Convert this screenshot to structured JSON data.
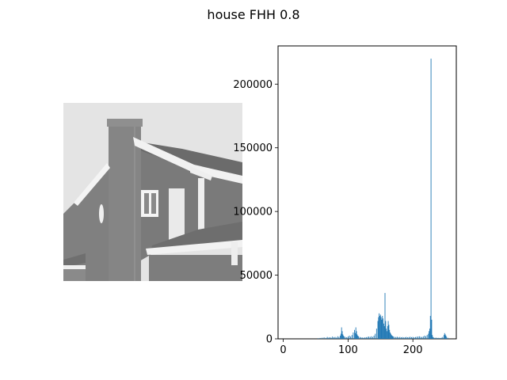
{
  "figure": {
    "title": "house FHH 0.8"
  },
  "image_panel": {
    "description_colors": {
      "sky": "#e4e4e4",
      "wall": "#7d7d7d",
      "trim": "#f2f2f2",
      "roof": "#6a6a6a"
    }
  },
  "chart_data": {
    "type": "bar",
    "title": "",
    "xlabel": "",
    "ylabel": "",
    "xlim": [
      -8,
      267
    ],
    "ylim": [
      0,
      230000
    ],
    "xticks": [
      0,
      100,
      200
    ],
    "yticks": [
      0,
      50000,
      100000,
      150000,
      200000
    ],
    "bar_color": "#1f77b4",
    "x": [
      54,
      57,
      60,
      63,
      66,
      68,
      70,
      72,
      74,
      76,
      78,
      80,
      82,
      84,
      86,
      88,
      89,
      90,
      91,
      92,
      93,
      94,
      96,
      98,
      100,
      102,
      104,
      106,
      108,
      110,
      111,
      112,
      113,
      114,
      115,
      116,
      118,
      120,
      122,
      124,
      126,
      128,
      130,
      132,
      134,
      136,
      138,
      140,
      142,
      144,
      146,
      147,
      148,
      149,
      150,
      151,
      152,
      153,
      154,
      155,
      156,
      157,
      158,
      159,
      160,
      161,
      162,
      163,
      164,
      165,
      166,
      167,
      168,
      169,
      170,
      172,
      174,
      176,
      178,
      180,
      182,
      184,
      186,
      188,
      190,
      192,
      194,
      196,
      198,
      200,
      202,
      204,
      206,
      208,
      210,
      212,
      214,
      216,
      218,
      220,
      222,
      224,
      225,
      226,
      227,
      228,
      229,
      230,
      231,
      232,
      234,
      236,
      238,
      240,
      242,
      244,
      246,
      248,
      249,
      250,
      251,
      252,
      254
    ],
    "y": [
      500,
      700,
      900,
      1200,
      800,
      1500,
      1000,
      1300,
      900,
      1800,
      1200,
      1500,
      1000,
      2000,
      1500,
      2500,
      4000,
      9000,
      6000,
      3500,
      2500,
      1800,
      1500,
      1200,
      1800,
      2500,
      1800,
      3000,
      5000,
      7000,
      4500,
      9000,
      6000,
      3500,
      2500,
      2000,
      1500,
      1200,
      1000,
      900,
      1100,
      1300,
      1500,
      1800,
      1500,
      2000,
      1500,
      2500,
      4000,
      8000,
      14000,
      17000,
      20000,
      18000,
      19000,
      17000,
      15000,
      18000,
      16000,
      12000,
      10000,
      36000,
      14000,
      8000,
      6000,
      10000,
      14000,
      11000,
      7000,
      5000,
      4000,
      3000,
      2500,
      2000,
      1800,
      1500,
      1400,
      1600,
      1300,
      1500,
      1200,
      1400,
      1100,
      1300,
      1500,
      1200,
      1400,
      1600,
      1300,
      1500,
      1200,
      1400,
      1600,
      1800,
      2000,
      1600,
      1400,
      1800,
      2500,
      2000,
      3000,
      4000,
      6000,
      8000,
      18000,
      220000,
      15000,
      3000,
      1500,
      1000,
      800,
      900,
      700,
      800,
      600,
      900,
      1500,
      3000,
      4500,
      3500,
      2500,
      1500,
      800
    ]
  }
}
